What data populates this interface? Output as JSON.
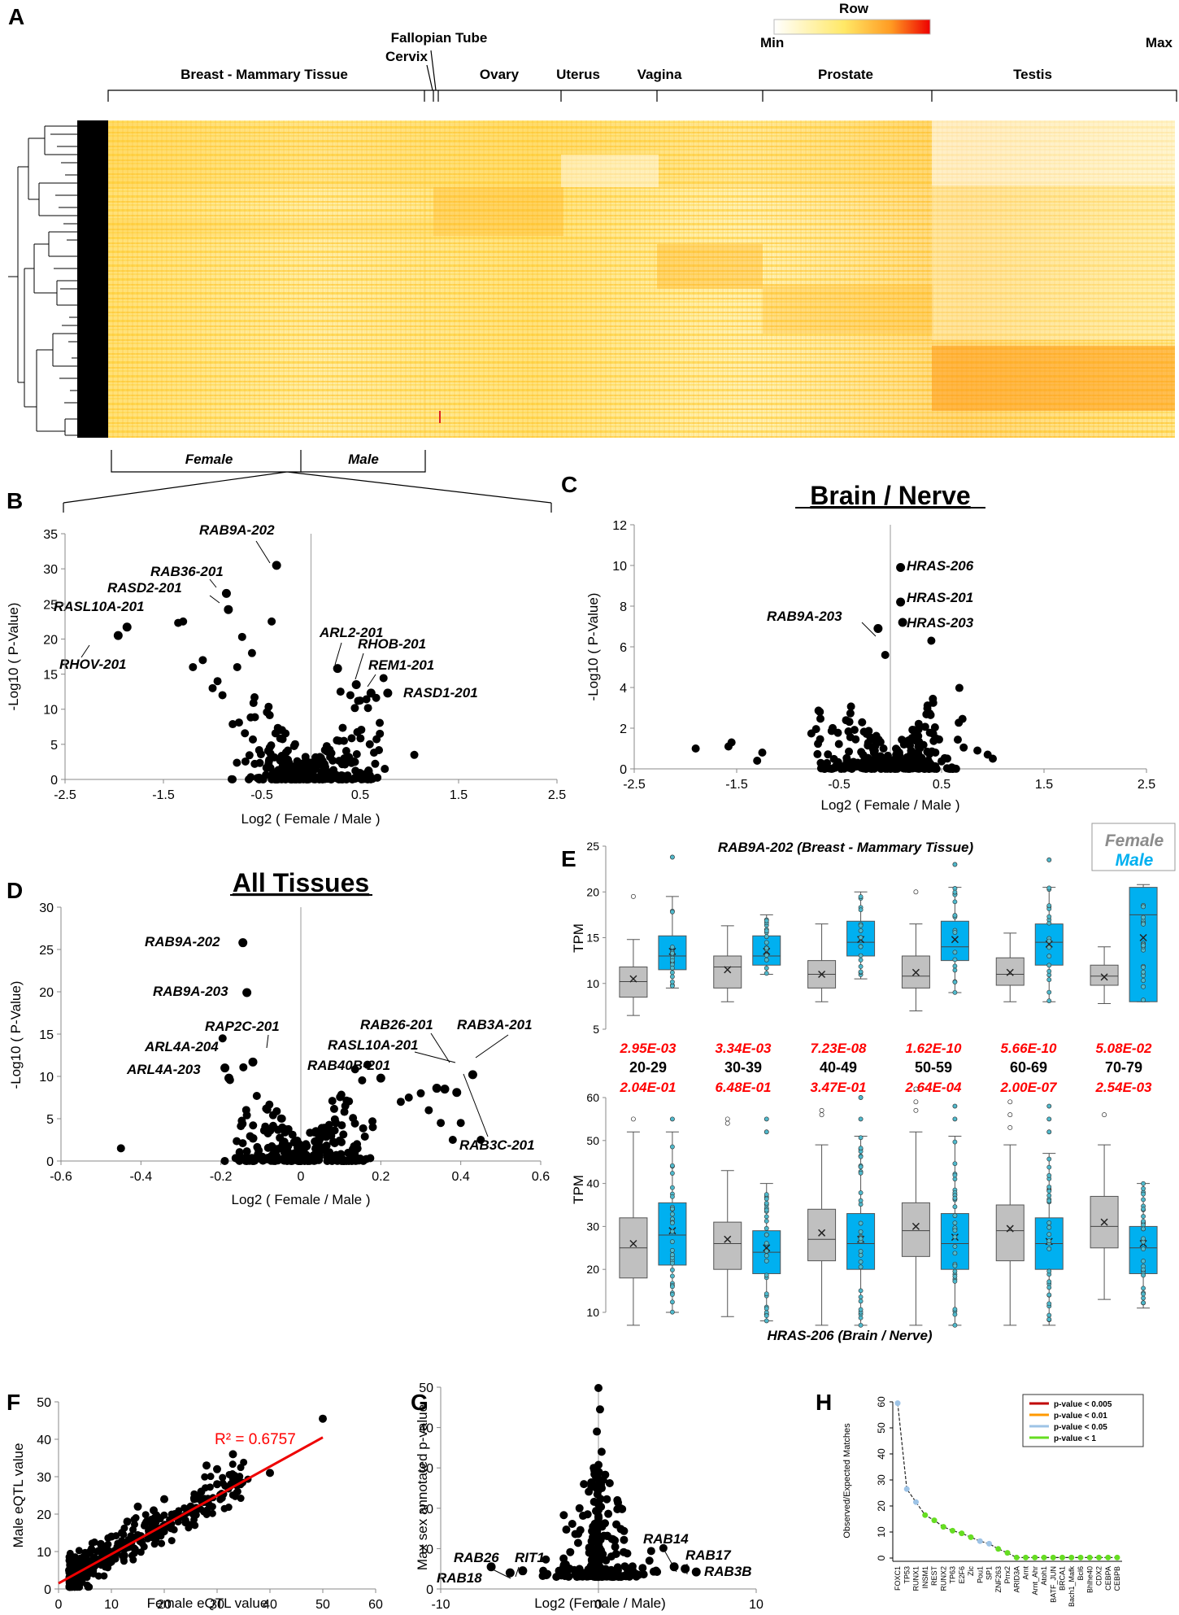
{
  "panels": {
    "A": {
      "label": "A",
      "legend": {
        "title": "Row",
        "min": "Min",
        "max": "Max"
      },
      "tissues": [
        "Breast - Mammary Tissue",
        "Fallopian Tube",
        "Cervix",
        "Ovary",
        "Uterus",
        "Vagina",
        "Prostate",
        "Testis"
      ],
      "groups": [
        "Female",
        "Male"
      ]
    },
    "B": {
      "label": "B"
    },
    "C": {
      "label": "C",
      "title": "Brain / Nerve"
    },
    "D": {
      "label": "D",
      "title": "All Tissues"
    },
    "E": {
      "label": "E",
      "title_top": "RAB9A-202 (Breast - Mammary Tissue)",
      "title_bottom": "HRAS-206 (Brain / Nerve)",
      "legend_female": "Female",
      "legend_male": "Male",
      "ylabel": "TPM",
      "age_groups": [
        "20-29",
        "30-39",
        "40-49",
        "50-59",
        "60-69",
        "70-79"
      ],
      "pvals_top": [
        "2.95E-03",
        "3.34E-03",
        "7.23E-08",
        "1.62E-10",
        "5.66E-10",
        "5.08E-02"
      ],
      "pvals_bottom": [
        "2.04E-01",
        "6.48E-01",
        "3.47E-01",
        "2.64E-04",
        "2.00E-07",
        "2.54E-03"
      ]
    },
    "F": {
      "label": "F",
      "r2": "R² = 0.6757"
    },
    "G": {
      "label": "G"
    },
    "H": {
      "label": "H",
      "ylabel": "Observed/Expected Matches",
      "legend": [
        "p-value < 0.005",
        "p-value < 0.01",
        "p-value < 0.05",
        "p-value < 1"
      ]
    }
  },
  "chart_data": [
    {
      "panel": "B",
      "type": "scatter",
      "xlabel": "Log2 ( Female / Male )",
      "ylabel": "-Log10 ( P-Value)",
      "xlim": [
        -2.5,
        2.5
      ],
      "ylim": [
        0,
        35
      ],
      "xticks": [
        -2.5,
        -1.5,
        -0.5,
        0.5,
        1.5,
        2.5
      ],
      "yticks": [
        0,
        5,
        10,
        15,
        20,
        25,
        30,
        35
      ],
      "labeled_points": [
        {
          "name": "RAB9A-202",
          "x": -0.35,
          "y": 30.5
        },
        {
          "name": "RAB36-201",
          "x": -0.86,
          "y": 26.5
        },
        {
          "name": "RASD2-201",
          "x": -0.84,
          "y": 24.2
        },
        {
          "name": "RASL10A-201",
          "x": -1.87,
          "y": 21.7
        },
        {
          "name": "RHOV-201",
          "x": -1.96,
          "y": 20.5
        },
        {
          "name": "ARL2-201",
          "x": 0.27,
          "y": 15.8
        },
        {
          "name": "RHOB-201",
          "x": 0.46,
          "y": 13.5
        },
        {
          "name": "REM1-201",
          "x": 0.61,
          "y": 12.3
        },
        {
          "name": "RASD1-201",
          "x": 0.78,
          "y": 12.3
        }
      ],
      "points": [
        [
          -1.3,
          22.5
        ],
        [
          -1.35,
          22.3
        ],
        [
          -0.4,
          22.5
        ],
        [
          -0.7,
          20.3
        ],
        [
          -1.1,
          17
        ],
        [
          -1.2,
          16
        ],
        [
          -0.6,
          18
        ],
        [
          -0.75,
          16
        ],
        [
          0.3,
          12.5
        ],
        [
          0.4,
          12
        ],
        [
          1.05,
          3.5
        ],
        [
          0.75,
          1.5
        ],
        [
          -0.95,
          14
        ],
        [
          -1.0,
          13
        ],
        [
          -0.9,
          12
        ]
      ]
    },
    {
      "panel": "C",
      "type": "scatter",
      "xlabel": "Log2 ( Female / Male )",
      "ylabel": "-Log10 ( P-Value)",
      "xlim": [
        -2.5,
        2.5
      ],
      "ylim": [
        0,
        12
      ],
      "xticks": [
        -2.5,
        -1.5,
        -0.5,
        0.5,
        1.5,
        2.5
      ],
      "yticks": [
        0,
        2,
        4,
        6,
        8,
        10,
        12
      ],
      "labeled_points": [
        {
          "name": "HRAS-206",
          "x": 0.1,
          "y": 9.9
        },
        {
          "name": "HRAS-201",
          "x": 0.1,
          "y": 8.2
        },
        {
          "name": "HRAS-203",
          "x": 0.12,
          "y": 7.2
        },
        {
          "name": "RAB9A-203",
          "x": -0.12,
          "y": 6.9
        }
      ],
      "points": [
        [
          0.4,
          6.3
        ],
        [
          -0.05,
          5.6
        ],
        [
          -1.9,
          1.0
        ],
        [
          -1.55,
          1.3
        ],
        [
          -1.58,
          1.1
        ],
        [
          -1.3,
          0.4
        ],
        [
          -1.25,
          0.8
        ],
        [
          0.95,
          0.7
        ],
        [
          1.0,
          0.5
        ],
        [
          0.85,
          0.9
        ]
      ]
    },
    {
      "panel": "D",
      "type": "scatter",
      "xlabel": "Log2 ( Female / Male )",
      "ylabel": "-Log10 ( P-Value)",
      "xlim": [
        -0.6,
        0.6
      ],
      "ylim": [
        0,
        30
      ],
      "xticks": [
        -0.6,
        -0.4,
        -0.2,
        0,
        0.2,
        0.4,
        0.6
      ],
      "yticks": [
        0,
        5,
        10,
        15,
        20,
        25,
        30
      ],
      "labeled_points": [
        {
          "name": "RAB9A-202",
          "x": -0.145,
          "y": 25.8
        },
        {
          "name": "RAB9A-203",
          "x": -0.135,
          "y": 19.9
        },
        {
          "name": "RAP2C-201",
          "x": -0.12,
          "y": 11.7
        },
        {
          "name": "ARL4A-204",
          "x": -0.19,
          "y": 11.0
        },
        {
          "name": "ARL4A-203",
          "x": -0.18,
          "y": 9.8
        },
        {
          "name": "RAB40B-201",
          "x": 0.2,
          "y": 9.8
        },
        {
          "name": "RAB26-201",
          "x": 0.34,
          "y": 8.6
        },
        {
          "name": "RASL10A-201",
          "x": 0.36,
          "y": 8.5
        },
        {
          "name": "RAB3A-201",
          "x": 0.43,
          "y": 10.2
        },
        {
          "name": "RAB3C-201",
          "x": 0.39,
          "y": 8.1
        }
      ],
      "points": [
        [
          -0.45,
          1.5
        ],
        [
          0.3,
          8
        ],
        [
          0.25,
          7
        ],
        [
          0.27,
          7.5
        ],
        [
          0.35,
          4.5
        ],
        [
          0.4,
          4.5
        ],
        [
          0.38,
          2.5
        ],
        [
          0.45,
          2.5
        ],
        [
          0.18,
          4
        ],
        [
          0.32,
          6
        ]
      ]
    },
    {
      "panel": "E-top",
      "type": "box",
      "title": "RAB9A-202 (Breast - Mammary Tissue)",
      "ylabel": "TPM",
      "ylim": [
        5,
        25
      ],
      "yticks": [
        5,
        10,
        15,
        20,
        25
      ],
      "categories": [
        "20-29",
        "30-39",
        "40-49",
        "50-59",
        "60-69",
        "70-79"
      ],
      "series": [
        {
          "name": "Female",
          "color": "#c0c0c0",
          "boxes": [
            {
              "min": 6.5,
              "q1": 8.5,
              "median": 10.2,
              "q3": 11.8,
              "max": 14.8,
              "mean": 10.5,
              "outliers": [
                19.5
              ]
            },
            {
              "min": 8.0,
              "q1": 9.5,
              "median": 11.8,
              "q3": 13.0,
              "max": 16.3,
              "mean": 11.5,
              "outliers": []
            },
            {
              "min": 8.0,
              "q1": 9.5,
              "median": 11.0,
              "q3": 12.5,
              "max": 16.5,
              "mean": 11.0,
              "outliers": []
            },
            {
              "min": 7.0,
              "q1": 9.5,
              "median": 10.8,
              "q3": 13.0,
              "max": 16.5,
              "mean": 11.2,
              "outliers": [
                20.0
              ]
            },
            {
              "min": 8.0,
              "q1": 9.8,
              "median": 11.0,
              "q3": 12.8,
              "max": 15.5,
              "mean": 11.2,
              "outliers": []
            },
            {
              "min": 7.8,
              "q1": 9.8,
              "median": 10.8,
              "q3": 12.0,
              "max": 14.0,
              "mean": 10.7,
              "outliers": []
            }
          ]
        },
        {
          "name": "Male",
          "color": "#00b0f0",
          "boxes": [
            {
              "min": 9.5,
              "q1": 11.5,
              "median": 13.0,
              "q3": 15.2,
              "max": 19.5,
              "mean": 13.5,
              "outliers": [
                23.8
              ]
            },
            {
              "min": 11.0,
              "q1": 12.0,
              "median": 13.0,
              "q3": 15.2,
              "max": 17.5,
              "mean": 13.5,
              "outliers": []
            },
            {
              "min": 10.5,
              "q1": 13.0,
              "median": 14.5,
              "q3": 16.8,
              "max": 20.0,
              "mean": 14.8,
              "outliers": []
            },
            {
              "min": 9.0,
              "q1": 12.5,
              "median": 14.0,
              "q3": 16.8,
              "max": 20.5,
              "mean": 14.8,
              "outliers": [
                23.0
              ]
            },
            {
              "min": 8.0,
              "q1": 12.0,
              "median": 14.5,
              "q3": 16.5,
              "max": 20.5,
              "mean": 14.3,
              "outliers": [
                23.5
              ]
            },
            {
              "min": 8.0,
              "q1": 8.0,
              "median": 17.5,
              "q3": 20.5,
              "max": 20.8,
              "mean": 15.0,
              "outliers": []
            }
          ]
        }
      ]
    },
    {
      "panel": "E-bottom",
      "type": "box",
      "title": "HRAS-206 (Brain / Nerve)",
      "ylabel": "TPM",
      "ylim": [
        10,
        60
      ],
      "yticks": [
        10,
        20,
        30,
        40,
        50,
        60
      ],
      "categories": [
        "20-29",
        "30-39",
        "40-49",
        "50-59",
        "60-69",
        "70-79"
      ],
      "series": [
        {
          "name": "Female",
          "color": "#c0c0c0",
          "boxes": [
            {
              "min": 7.0,
              "q1": 18.0,
              "median": 25.0,
              "q3": 32.0,
              "max": 52.0,
              "mean": 26.0,
              "outliers": [
                55.0
              ]
            },
            {
              "min": 9.0,
              "q1": 20.0,
              "median": 26.0,
              "q3": 31.0,
              "max": 43.0,
              "mean": 27.0,
              "outliers": [
                55.0,
                54.0
              ]
            },
            {
              "min": 6.0,
              "q1": 22.0,
              "median": 27.0,
              "q3": 34.0,
              "max": 49.0,
              "mean": 28.5,
              "outliers": [
                56.0,
                57.0
              ]
            },
            {
              "min": 7.0,
              "q1": 23.0,
              "median": 29.0,
              "q3": 35.5,
              "max": 52.0,
              "mean": 30.0,
              "outliers": [
                57.0,
                59.0,
                62.0
              ]
            },
            {
              "min": 7.0,
              "q1": 22.0,
              "median": 29.0,
              "q3": 35.0,
              "max": 49.0,
              "mean": 29.5,
              "outliers": [
                53.0,
                56.0,
                59.0
              ]
            },
            {
              "min": 13.0,
              "q1": 25.0,
              "median": 30.0,
              "q3": 37.0,
              "max": 49.0,
              "mean": 31.0,
              "outliers": [
                56.0
              ]
            }
          ]
        },
        {
          "name": "Male",
          "color": "#00b0f0",
          "boxes": [
            {
              "min": 10.0,
              "q1": 21.0,
              "median": 28.0,
              "q3": 35.5,
              "max": 52.0,
              "mean": 29.0,
              "outliers": [
                55.0
              ]
            },
            {
              "min": 8.0,
              "q1": 19.0,
              "median": 24.0,
              "q3": 29.0,
              "max": 40.0,
              "mean": 25.0,
              "outliers": [
                52.0,
                55.0
              ]
            },
            {
              "min": 6.0,
              "q1": 20.0,
              "median": 26.0,
              "q3": 33.0,
              "max": 51.0,
              "mean": 27.0,
              "outliers": [
                55.0,
                60.0
              ]
            },
            {
              "min": 6.0,
              "q1": 20.0,
              "median": 26.0,
              "q3": 33.0,
              "max": 51.0,
              "mean": 27.5,
              "outliers": [
                55.0,
                58.0
              ]
            },
            {
              "min": 7.0,
              "q1": 20.0,
              "median": 26.0,
              "q3": 32.0,
              "max": 47.0,
              "mean": 26.5,
              "outliers": [
                52.0,
                55.0,
                58.0
              ]
            },
            {
              "min": 11.0,
              "q1": 19.0,
              "median": 25.0,
              "q3": 30.0,
              "max": 40.0,
              "mean": 26.0,
              "outliers": []
            }
          ]
        }
      ]
    },
    {
      "panel": "F",
      "type": "scatter",
      "xlabel": "Female eQTL value",
      "ylabel": "Male eQTL value",
      "xlim": [
        0,
        60
      ],
      "ylim": [
        0,
        50
      ],
      "xticks": [
        0,
        10,
        20,
        30,
        40,
        50,
        60
      ],
      "yticks": [
        0,
        10,
        20,
        30,
        40,
        50
      ],
      "r2": 0.6757,
      "fit_line": {
        "x": [
          0,
          50
        ],
        "y": [
          1.5,
          40.5
        ]
      },
      "points": [
        [
          50,
          45.5
        ],
        [
          40,
          31
        ],
        [
          33,
          36
        ],
        [
          30,
          28
        ],
        [
          27,
          26
        ],
        [
          25,
          22
        ],
        [
          22,
          20
        ],
        [
          20,
          24
        ],
        [
          18,
          21
        ],
        [
          15,
          22
        ],
        [
          13,
          18
        ],
        [
          12,
          15
        ],
        [
          10,
          14
        ],
        [
          8,
          12
        ],
        [
          6,
          10
        ],
        [
          4,
          8
        ],
        [
          3,
          6
        ],
        [
          2,
          5
        ],
        [
          30,
          32
        ],
        [
          28,
          33
        ]
      ]
    },
    {
      "panel": "G",
      "type": "scatter",
      "xlabel": "Log2 (Female / Male)",
      "ylabel": "Max sex annotated p-value",
      "xlim": [
        -10,
        10
      ],
      "ylim": [
        0,
        50
      ],
      "xticks": [
        -10,
        0,
        10
      ],
      "yticks": [
        0,
        10,
        20,
        30,
        40,
        50
      ],
      "labeled_points": [
        {
          "name": "RAB26",
          "x": -5.6,
          "y": 4.0
        },
        {
          "name": "RAB18",
          "x": -6.8,
          "y": 5.5
        },
        {
          "name": "RIT1",
          "x": -4.8,
          "y": 4.5
        },
        {
          "name": "RAB14",
          "x": 4.8,
          "y": 5.5
        },
        {
          "name": "RAB17",
          "x": 5.5,
          "y": 5.0
        },
        {
          "name": "RAB3B",
          "x": 6.2,
          "y": 4.2
        }
      ],
      "points": [
        [
          0,
          49.8
        ],
        [
          0.1,
          44.5
        ],
        [
          -0.1,
          39
        ],
        [
          0.2,
          34
        ],
        [
          -0.3,
          30
        ],
        [
          0.3,
          27
        ],
        [
          -3.5,
          4.5
        ],
        [
          -2.5,
          4.5
        ],
        [
          3.5,
          4.3
        ],
        [
          2.8,
          5.2
        ],
        [
          -1.2,
          20
        ],
        [
          1.2,
          22
        ]
      ]
    },
    {
      "panel": "H",
      "type": "line",
      "ylabel": "Observed/Expected Matches",
      "ylim": [
        0,
        60
      ],
      "yticks": [
        0,
        10,
        20,
        30,
        40,
        50,
        60
      ],
      "categories": [
        "FOXC1",
        "TP53",
        "RUNX1",
        "INSM1",
        "REST",
        "RUNX2",
        "TP63",
        "E2F6",
        "Zic",
        "Pou1",
        "SP1",
        "ZNF263",
        "Prrx2",
        "ARID3A",
        "Arnt",
        "Arnt_Ahr",
        "Atoh1",
        "BATF_JUN",
        "BRCA1",
        "Bach1_Mafk",
        "Bcl6",
        "Bhlhe40",
        "CDX2",
        "CEBPA",
        "CEBPB"
      ],
      "values": [
        59.5,
        26.5,
        21.5,
        16.5,
        14.5,
        12.0,
        10.5,
        9.5,
        8.0,
        6.5,
        5.5,
        3.5,
        2.0,
        0.2,
        0.2,
        0.2,
        0.2,
        0.2,
        0.2,
        0.2,
        0.2,
        0.2,
        0.2,
        0.2,
        0.2
      ],
      "significance": [
        "p-value < 0.05",
        "p-value < 0.05",
        "p-value < 0.05",
        "p-value < 1",
        "p-value < 1",
        "p-value < 1",
        "p-value < 1",
        "p-value < 1",
        "p-value < 1",
        "p-value < 0.05",
        "p-value < 0.05",
        "p-value < 1",
        "p-value < 1",
        "p-value < 1",
        "p-value < 1",
        "p-value < 1",
        "p-value < 1",
        "p-value < 1",
        "p-value < 1",
        "p-value < 1",
        "p-value < 1",
        "p-value < 1",
        "p-value < 1",
        "p-value < 1",
        "p-value < 1"
      ],
      "colors": {
        "p-value < 0.005": "#c00000",
        "p-value < 0.01": "#ff9900",
        "p-value < 0.05": "#9dc3e6",
        "p-value < 1": "#66dd22"
      }
    }
  ]
}
